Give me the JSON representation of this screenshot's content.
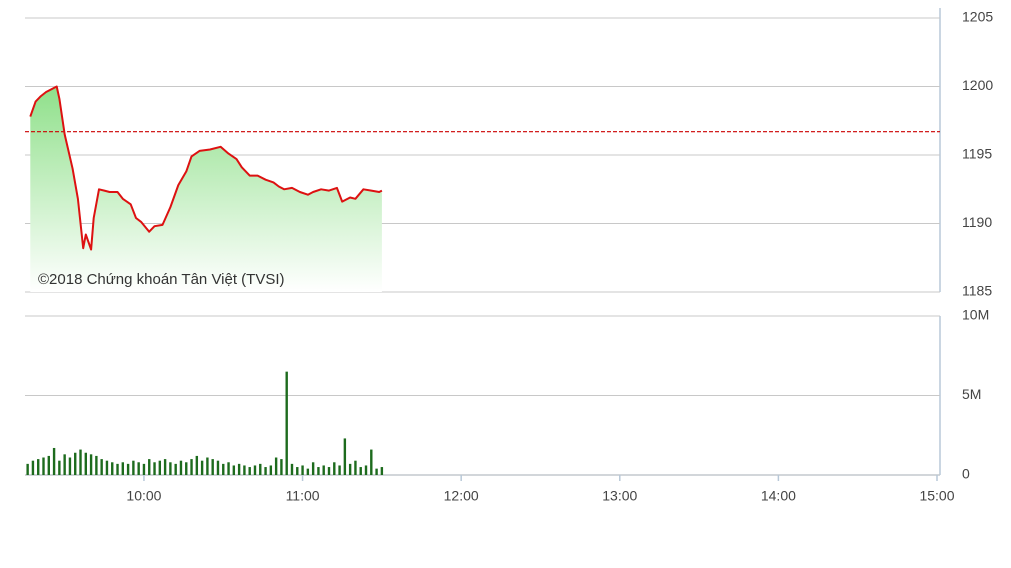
{
  "chart_data": [
    {
      "type": "line",
      "annotation": "©2018 Chứng khoán Tân Việt (TVSI)",
      "x": [
        "9:17",
        "9:19",
        "9:21",
        "9:23",
        "9:24",
        "9:27",
        "9:28",
        "9:30",
        "9:33",
        "9:35",
        "9:37",
        "9:38",
        "9:40",
        "9:41",
        "9:43",
        "9:45",
        "9:47",
        "9:50",
        "9:52",
        "9:55",
        "9:57",
        "9:59",
        "10:02",
        "10:04",
        "10:07",
        "10:10",
        "10:13",
        "10:16",
        "10:18",
        "10:21",
        "10:25",
        "10:29",
        "10:32",
        "10:35",
        "10:37",
        "10:40",
        "10:43",
        "10:46",
        "10:49",
        "10:51",
        "10:53",
        "10:56",
        "10:59",
        "11:02",
        "11:04",
        "11:07",
        "11:10",
        "11:13",
        "11:15",
        "11:18",
        "11:20",
        "11:23",
        "11:26",
        "11:29",
        "11:30"
      ],
      "values": [
        1197.8,
        1198.9,
        1199.3,
        1199.6,
        1199.7,
        1200.0,
        1199.1,
        1196.5,
        1194.0,
        1191.8,
        1188.2,
        1189.2,
        1188.1,
        1190.4,
        1192.5,
        1192.4,
        1192.3,
        1192.3,
        1191.8,
        1191.4,
        1190.4,
        1190.1,
        1189.4,
        1189.8,
        1189.9,
        1191.2,
        1192.8,
        1193.8,
        1194.9,
        1195.3,
        1195.4,
        1195.6,
        1195.1,
        1194.7,
        1194.1,
        1193.5,
        1193.5,
        1193.2,
        1193.0,
        1192.7,
        1192.5,
        1192.6,
        1192.3,
        1192.1,
        1192.3,
        1192.5,
        1192.4,
        1192.6,
        1191.6,
        1191.9,
        1191.8,
        1192.5,
        1192.4,
        1192.3,
        1192.4
      ],
      "color": "#dd1111",
      "area_color": "#8fe08a",
      "reference_line": 1196.7,
      "reference_color": "#cc0000",
      "xlim": [
        "9:15",
        "15:00"
      ],
      "ylim": [
        1185,
        1205
      ],
      "yticks": [
        1185,
        1190,
        1195,
        1200,
        1205
      ],
      "grid": true
    },
    {
      "type": "bar",
      "x": [
        "9:16",
        "9:18",
        "9:20",
        "9:22",
        "9:24",
        "9:26",
        "9:28",
        "9:30",
        "9:32",
        "9:34",
        "9:36",
        "9:38",
        "9:40",
        "9:42",
        "9:44",
        "9:46",
        "9:48",
        "9:50",
        "9:52",
        "9:54",
        "9:56",
        "9:58",
        "10:00",
        "10:02",
        "10:04",
        "10:06",
        "10:08",
        "10:10",
        "10:12",
        "10:14",
        "10:16",
        "10:18",
        "10:20",
        "10:22",
        "10:24",
        "10:26",
        "10:28",
        "10:30",
        "10:32",
        "10:34",
        "10:36",
        "10:38",
        "10:40",
        "10:42",
        "10:44",
        "10:46",
        "10:48",
        "10:50",
        "10:52",
        "10:54",
        "10:56",
        "10:58",
        "11:00",
        "11:02",
        "11:04",
        "11:06",
        "11:08",
        "11:10",
        "11:12",
        "11:14",
        "11:16",
        "11:18",
        "11:20",
        "11:22",
        "11:24",
        "11:26",
        "11:28",
        "11:30"
      ],
      "values": [
        700000,
        900000,
        1000000,
        1100000,
        1200000,
        1700000,
        900000,
        1300000,
        1100000,
        1400000,
        1600000,
        1400000,
        1300000,
        1200000,
        1000000,
        900000,
        800000,
        700000,
        800000,
        700000,
        900000,
        800000,
        700000,
        1000000,
        800000,
        900000,
        1000000,
        800000,
        700000,
        900000,
        800000,
        1000000,
        1200000,
        900000,
        1100000,
        1000000,
        900000,
        700000,
        800000,
        600000,
        700000,
        600000,
        500000,
        600000,
        700000,
        500000,
        600000,
        1100000,
        1000000,
        6500000,
        700000,
        500000,
        600000,
        400000,
        800000,
        500000,
        600000,
        500000,
        800000,
        600000,
        2300000,
        700000,
        900000,
        500000,
        600000,
        1600000,
        400000,
        500000
      ],
      "color": "#1d6b1d",
      "xlim": [
        "9:15",
        "15:00"
      ],
      "xticks": [
        "10:00",
        "11:00",
        "12:00",
        "13:00",
        "14:00",
        "15:00"
      ],
      "ylim": [
        0,
        10000000
      ],
      "yticks": [
        {
          "value": 0,
          "label": "0"
        },
        {
          "value": 5000000,
          "label": "5M"
        },
        {
          "value": 10000000,
          "label": "10M"
        }
      ],
      "grid": true
    }
  ]
}
